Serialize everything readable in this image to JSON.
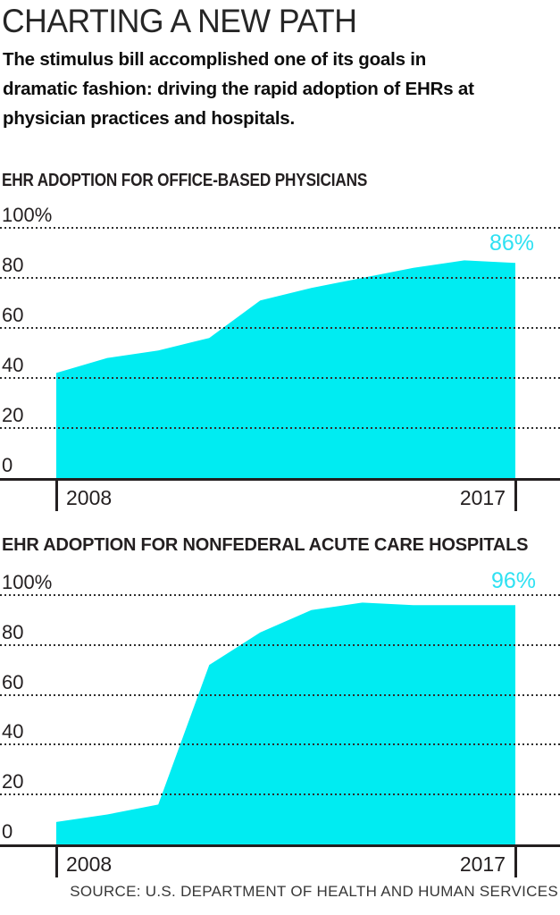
{
  "header": {
    "title": "CHARTING A NEW PATH",
    "subtitle_lines": [
      "The stimulus bill accomplished one of its goals in",
      "dramatic fashion: driving the rapid adoption of EHRs at",
      "physician practices and hospitals."
    ]
  },
  "chart_data": [
    {
      "type": "area",
      "title": "EHR ADOPTION FOR OFFICE-BASED PHYSICIANS",
      "x": [
        2008,
        2009,
        2010,
        2011,
        2012,
        2013,
        2014,
        2015,
        2016,
        2017
      ],
      "values": [
        42,
        48,
        51,
        56,
        71,
        76,
        80,
        84,
        87,
        86
      ],
      "end_label": "86%",
      "xlabel": "",
      "ylabel": "",
      "ylim": [
        0,
        100
      ],
      "ytick_labels": [
        "100%",
        "80",
        "60",
        "40",
        "20",
        "0"
      ],
      "xtick_labels": [
        "2008",
        "2017"
      ],
      "grid": "horizontal-dotted",
      "legend": "none",
      "fill_color": "#00ecf2"
    },
    {
      "type": "area",
      "title": "EHR ADOPTION FOR NONFEDERAL ACUTE CARE HOSPITALS",
      "x": [
        2008,
        2009,
        2010,
        2011,
        2012,
        2013,
        2014,
        2015,
        2016,
        2017
      ],
      "values": [
        9,
        12,
        16,
        72,
        85,
        94,
        97,
        96,
        96,
        96
      ],
      "end_label": "96%",
      "xlabel": "",
      "ylabel": "",
      "ylim": [
        0,
        100
      ],
      "ytick_labels": [
        "100%",
        "80",
        "60",
        "40",
        "20",
        "0"
      ],
      "xtick_labels": [
        "2008",
        "2017"
      ],
      "grid": "horizontal-dotted",
      "legend": "none",
      "fill_color": "#00ecf2"
    }
  ],
  "footer": {
    "source": "SOURCE: U.S. DEPARTMENT OF HEALTH AND HUMAN SERVICES"
  },
  "colors": {
    "accent_fill": "#00ecf2",
    "end_label_text": "#2fe1f2",
    "axis": "#231f20",
    "grid_dot": "#2e2e2e",
    "text": "#1d1d1d"
  }
}
